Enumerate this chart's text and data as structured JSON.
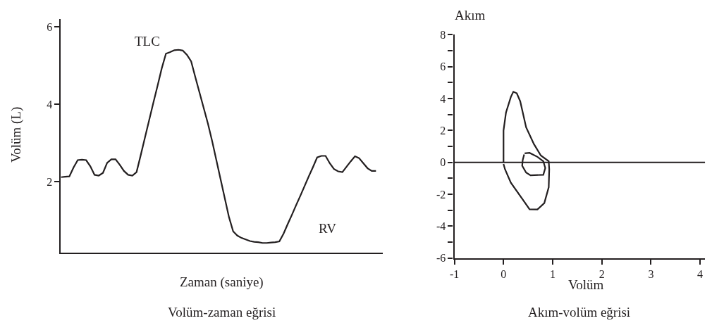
{
  "chart_data": [
    {
      "type": "line",
      "title": "Volüm-zaman eğrisi",
      "xlabel": "Zaman (saniye)",
      "ylabel": "Volüm (L)",
      "categories": [
        null,
        null,
        null,
        null,
        null,
        null,
        null,
        null,
        null,
        null,
        null,
        null,
        null,
        null,
        null,
        null,
        null,
        null,
        null,
        null,
        null,
        null,
        null,
        null,
        null,
        null,
        null,
        null,
        null,
        null,
        null,
        null,
        null,
        null,
        null,
        null,
        null,
        null,
        null,
        null,
        null,
        null,
        null,
        null,
        null,
        null,
        null,
        null,
        null,
        null,
        null,
        null,
        null,
        null,
        null,
        null,
        null,
        null,
        null,
        null,
        null,
        null,
        null,
        null,
        null,
        null,
        null,
        null,
        null,
        null,
        null,
        null,
        null,
        null,
        null,
        null
      ],
      "values": [
        2.12,
        2.13,
        2.14,
        2.37,
        2.56,
        2.57,
        2.56,
        2.4,
        2.18,
        2.16,
        2.23,
        2.49,
        2.58,
        2.58,
        2.44,
        2.28,
        2.18,
        2.16,
        2.25,
        2.69,
        3.14,
        3.59,
        4.04,
        4.48,
        4.93,
        5.31,
        5.35,
        5.4,
        5.41,
        5.39,
        5.28,
        5.11,
        4.7,
        4.3,
        3.9,
        3.5,
        3.05,
        2.56,
        2.07,
        1.58,
        1.09,
        0.72,
        0.61,
        0.55,
        0.51,
        0.47,
        0.45,
        0.44,
        0.42,
        0.42,
        0.43,
        0.44,
        0.46,
        0.66,
        0.91,
        1.15,
        1.4,
        1.64,
        1.89,
        2.14,
        2.38,
        2.63,
        2.67,
        2.67,
        2.48,
        2.33,
        2.27,
        2.25,
        2.39,
        2.53,
        2.66,
        2.61,
        2.48,
        2.35,
        2.28,
        2.28
      ],
      "color": "#231f20",
      "ylim": [
        0.17,
        6.2
      ],
      "yticks": [
        2,
        4,
        6
      ],
      "tick_labels": "y",
      "annotations": [
        "TLC",
        "RV"
      ],
      "grid": false,
      "marker": "none",
      "line_style": "solid"
    },
    {
      "type": "line",
      "title": "Akım-volüm eğrisi",
      "xlabel": "Volüm",
      "ylabel": "Akım",
      "series": [
        {
          "color": "#231f20",
          "x": [
            0.0,
            0.0,
            0.05,
            0.15,
            0.2,
            0.27,
            0.34,
            0.46,
            0.62,
            0.76,
            0.92,
            0.93,
            0.92,
            0.83,
            0.69,
            0.53,
            0.41,
            0.15,
            0.03,
            0.0
          ],
          "values": [
            0.0,
            1.99,
            3.12,
            4.11,
            4.43,
            4.33,
            3.83,
            2.2,
            1.14,
            0.43,
            0.07,
            -0.43,
            -1.56,
            -2.55,
            -2.95,
            -2.94,
            -2.41,
            -1.28,
            -0.43,
            -0.1
          ]
        },
        {
          "color": "#231f20",
          "x": [
            0.43,
            0.53,
            0.69,
            0.81,
            0.85,
            0.81,
            0.55,
            0.46,
            0.38,
            0.39,
            0.42
          ],
          "values": [
            0.57,
            0.6,
            0.35,
            0.07,
            -0.35,
            -0.78,
            -0.81,
            -0.64,
            -0.21,
            0.14,
            0.5
          ]
        }
      ],
      "xlim": [
        -1,
        4.1
      ],
      "xticks": [
        -1,
        0,
        1,
        2,
        3,
        4
      ],
      "ylim": [
        -6,
        8
      ],
      "yticks": [
        -6,
        {
          "value": -5,
          "label": null
        },
        -4,
        {
          "value": -3,
          "label": null
        },
        -2,
        {
          "value": -1,
          "label": null
        },
        0,
        {
          "value": 1,
          "label": null
        },
        2,
        {
          "value": 3,
          "label": null
        },
        4,
        {
          "value": 5,
          "label": null
        },
        6,
        {
          "value": 7,
          "label": null
        },
        8
      ],
      "ref_lines": [
        {
          "axis": "y",
          "value": 0,
          "color": "#231f20"
        }
      ],
      "grid": false,
      "marker": "none",
      "line_style": "solid"
    }
  ]
}
